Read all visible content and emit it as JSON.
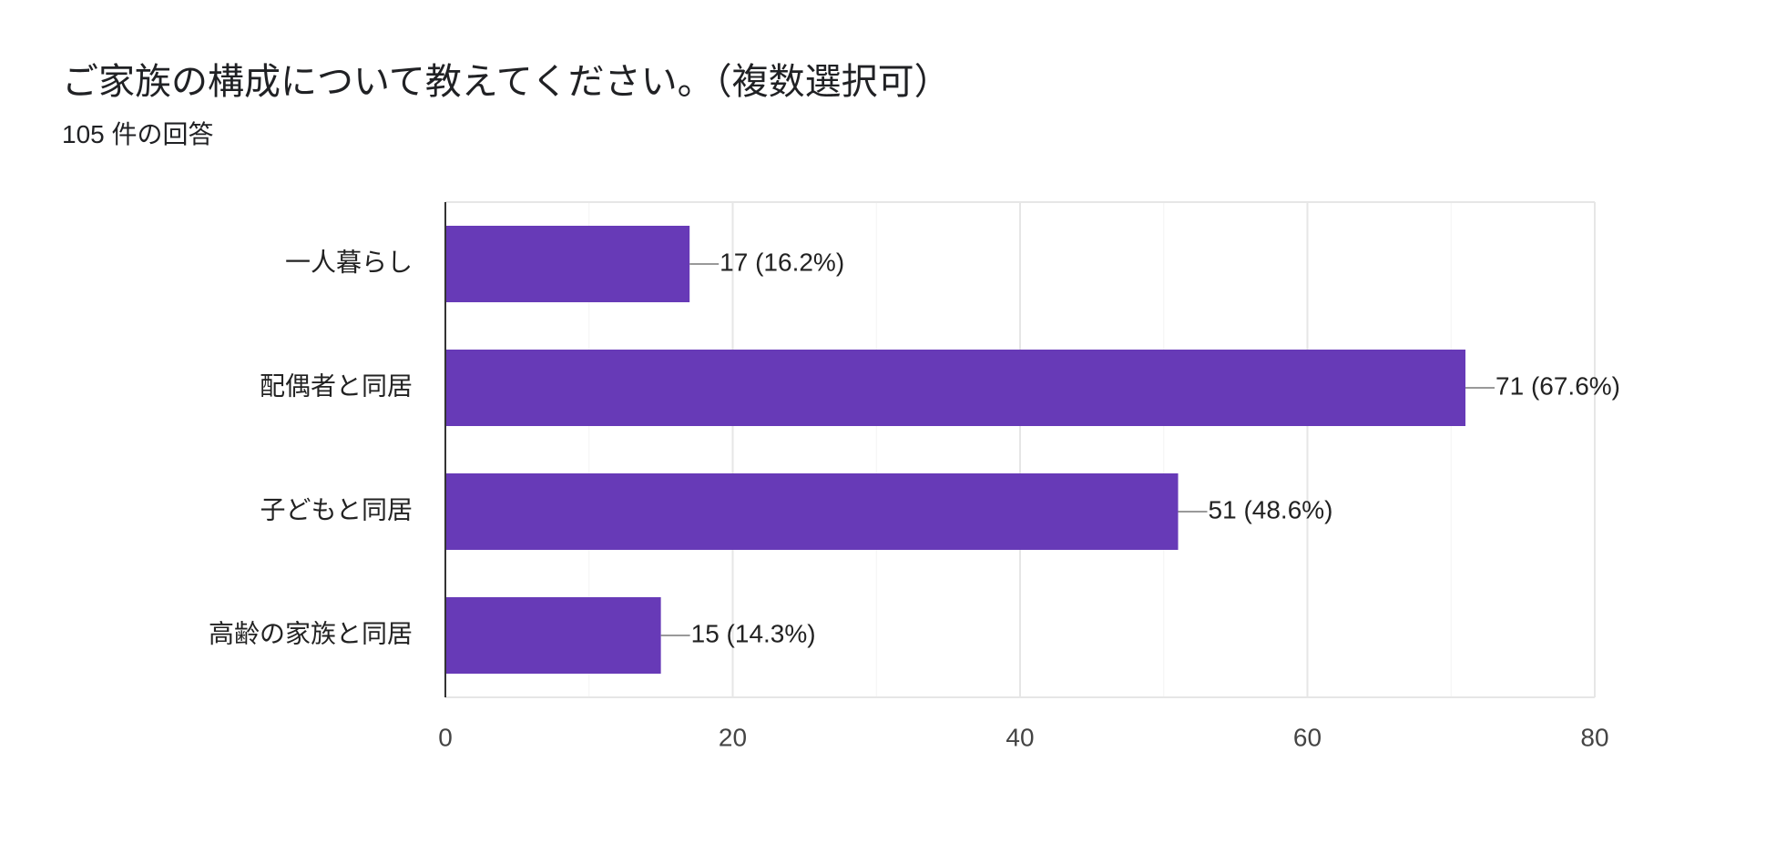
{
  "header": {
    "title": "ご家族の構成について教えてください。（複数選択可）",
    "response_count": "105 件の回答"
  },
  "chart_data": {
    "type": "bar",
    "orientation": "horizontal",
    "categories": [
      "一人暮らし",
      "配偶者と同居",
      "子どもと同居",
      "高齢の家族と同居"
    ],
    "values": [
      17,
      71,
      51,
      15
    ],
    "data_labels": [
      "17 (16.2%)",
      "71 (67.6%)",
      "51 (48.6%)",
      "15 (14.3%)"
    ],
    "xlim": [
      0,
      80
    ],
    "x_ticks": [
      0,
      20,
      40,
      60,
      80
    ],
    "grid": true,
    "bar_color": "#673ab7"
  }
}
